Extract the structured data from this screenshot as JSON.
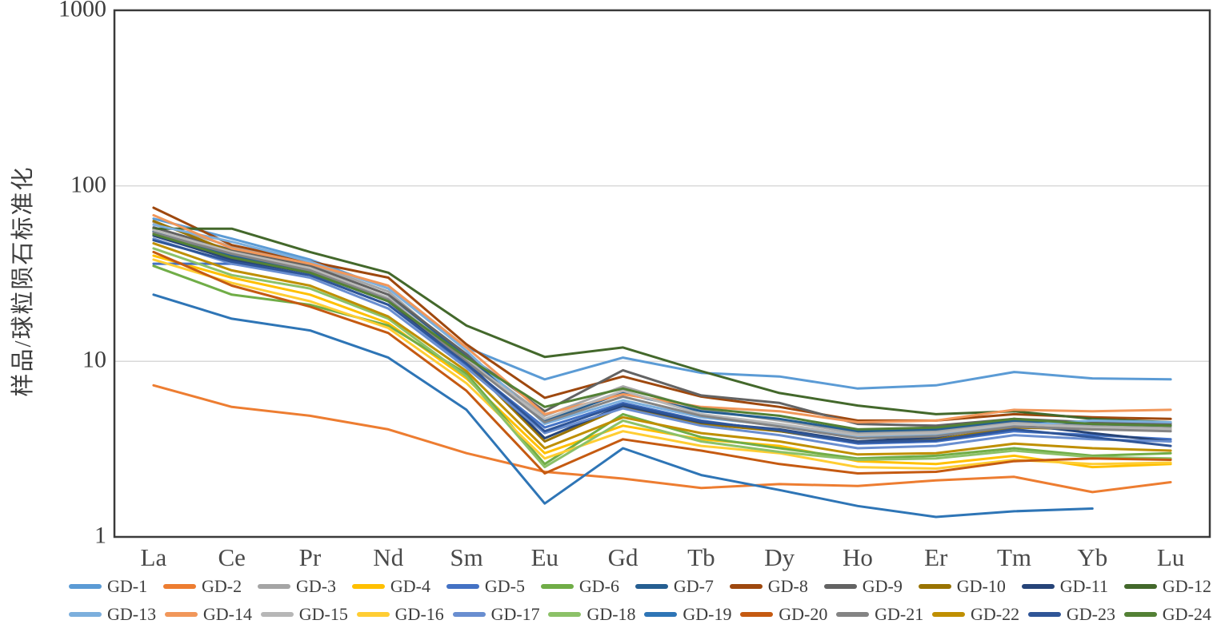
{
  "chart_data": {
    "type": "line",
    "title": "",
    "y_axis": {
      "title": "样品/球粒陨石标准化",
      "scale": "log",
      "range": [
        1,
        1000
      ],
      "ticks": [
        {
          "label": "1",
          "value": 1
        },
        {
          "label": "10",
          "value": 10
        },
        {
          "label": "100",
          "value": 100
        },
        {
          "label": "1000",
          "value": 1000
        }
      ],
      "gridlines": [
        10,
        100
      ]
    },
    "categories": [
      "La",
      "Ce",
      "Pr",
      "Nd",
      "Sm",
      "Eu",
      "Gd",
      "Tb",
      "Dy",
      "Ho",
      "Er",
      "Tm",
      "Yb",
      "Lu"
    ],
    "legend": {
      "position": "bottom",
      "rows": 2,
      "items_per_row": 12
    },
    "style": {
      "axis_color": "#3a3a3a",
      "grid_color": "#d9d9d9",
      "text_color": "#3d3d3d",
      "line_width": 3
    },
    "series": [
      {
        "name": "GD-1",
        "color": "#5B9BD5",
        "values": [
          65,
          50,
          38,
          26,
          12,
          7.9,
          10.5,
          8.6,
          8.2,
          7.0,
          7.3,
          8.7,
          8.0,
          7.9
        ]
      },
      {
        "name": "GD-2",
        "color": "#ED7D31",
        "values": [
          7.3,
          5.5,
          4.9,
          4.1,
          3.0,
          2.35,
          2.15,
          1.9,
          2.0,
          1.95,
          2.1,
          2.2,
          1.8,
          2.05
        ]
      },
      {
        "name": "GD-3",
        "color": "#A5A5A5",
        "values": [
          62,
          45,
          36,
          25,
          10.5,
          4.9,
          7.2,
          5.3,
          4.6,
          3.9,
          4.0,
          4.5,
          4.3,
          4.2
        ]
      },
      {
        "name": "GD-4",
        "color": "#FFC000",
        "values": [
          40,
          30,
          24,
          16.5,
          8.0,
          3.0,
          4.3,
          3.6,
          3.3,
          2.7,
          2.6,
          2.9,
          2.5,
          2.6
        ]
      },
      {
        "name": "GD-5",
        "color": "#4472C4",
        "values": [
          36,
          36,
          31,
          21,
          9.5,
          4.2,
          5.8,
          4.6,
          4.0,
          3.4,
          3.5,
          4.0,
          3.8,
          3.6
        ]
      },
      {
        "name": "GD-6",
        "color": "#70AD47",
        "values": [
          35,
          24,
          21,
          16,
          8.5,
          2.6,
          5.0,
          3.7,
          3.2,
          2.8,
          2.9,
          3.2,
          2.9,
          3.0
        ]
      },
      {
        "name": "GD-7",
        "color": "#255E91",
        "values": [
          55,
          40,
          33,
          23,
          10.8,
          4.6,
          6.6,
          5.2,
          4.7,
          4.0,
          4.1,
          4.6,
          4.4,
          4.3
        ]
      },
      {
        "name": "GD-8",
        "color": "#9E480E",
        "values": [
          75,
          46,
          37,
          30,
          12.5,
          6.2,
          8.2,
          6.3,
          5.5,
          4.6,
          4.6,
          5.0,
          4.8,
          4.7
        ]
      },
      {
        "name": "GD-9",
        "color": "#636363",
        "values": [
          58,
          43,
          35,
          24,
          11.0,
          5.2,
          8.9,
          6.4,
          5.8,
          4.4,
          4.3,
          4.7,
          4.5,
          4.4
        ]
      },
      {
        "name": "GD-10",
        "color": "#997300",
        "values": [
          63,
          42,
          34,
          22,
          9.8,
          3.5,
          5.5,
          4.4,
          4.0,
          3.5,
          3.6,
          4.2,
          4.1,
          4.1
        ]
      },
      {
        "name": "GD-11",
        "color": "#264478",
        "values": [
          52,
          38,
          32,
          22,
          10.0,
          3.65,
          5.6,
          4.5,
          4.1,
          3.5,
          3.7,
          4.4,
          3.9,
          3.5
        ]
      },
      {
        "name": "GD-12",
        "color": "#43682B",
        "values": [
          57,
          57,
          42,
          32,
          16,
          10.6,
          12.0,
          8.8,
          6.6,
          5.6,
          5.0,
          5.2,
          4.7,
          4.5
        ]
      },
      {
        "name": "GD-13",
        "color": "#7CAFDD",
        "values": [
          60,
          48,
          37,
          26,
          11.5,
          4.4,
          6.0,
          4.8,
          4.3,
          3.7,
          3.8,
          4.3,
          4.6,
          4.5
        ]
      },
      {
        "name": "GD-14",
        "color": "#F1975A",
        "values": [
          68,
          44,
          36,
          27,
          12.0,
          5.0,
          6.5,
          5.5,
          5.2,
          4.5,
          4.6,
          5.3,
          5.2,
          5.3
        ]
      },
      {
        "name": "GD-15",
        "color": "#B7B7B7",
        "values": [
          56,
          42,
          34,
          23,
          10.2,
          4.7,
          6.8,
          5.0,
          4.4,
          3.8,
          3.9,
          4.4,
          4.2,
          4.1
        ]
      },
      {
        "name": "GD-16",
        "color": "#FFCD33",
        "values": [
          38,
          28,
          22,
          15.5,
          7.5,
          2.8,
          4.0,
          3.3,
          3.0,
          2.5,
          2.45,
          2.75,
          2.6,
          2.65
        ]
      },
      {
        "name": "GD-17",
        "color": "#698ED0",
        "values": [
          50,
          36,
          30,
          20,
          9.2,
          3.9,
          5.4,
          4.3,
          3.8,
          3.2,
          3.3,
          3.8,
          3.6,
          3.5
        ]
      },
      {
        "name": "GD-18",
        "color": "#8CC168",
        "values": [
          44,
          31,
          26,
          17.5,
          8.2,
          2.5,
          4.6,
          3.5,
          3.05,
          2.75,
          2.8,
          3.1,
          2.85,
          2.8
        ]
      },
      {
        "name": "GD-19",
        "color": "#2E75B6",
        "values": [
          24,
          17.5,
          15,
          10.5,
          5.3,
          1.55,
          3.2,
          2.25,
          1.85,
          1.5,
          1.3,
          1.4,
          1.45,
          null
        ]
      },
      {
        "name": "GD-20",
        "color": "#C55A11",
        "values": [
          42,
          27,
          20.5,
          14.5,
          6.8,
          2.3,
          3.6,
          3.1,
          2.6,
          2.3,
          2.35,
          2.7,
          2.8,
          2.75
        ]
      },
      {
        "name": "GD-21",
        "color": "#848484",
        "values": [
          54,
          41,
          33,
          22.5,
          10.0,
          4.5,
          6.3,
          4.9,
          4.25,
          3.65,
          3.75,
          4.25,
          4.1,
          4.0
        ]
      },
      {
        "name": "GD-22",
        "color": "#BF8F00",
        "values": [
          47,
          33,
          27,
          18,
          8.8,
          3.2,
          4.8,
          3.9,
          3.5,
          2.95,
          3.0,
          3.4,
          3.2,
          3.1
        ]
      },
      {
        "name": "GD-23",
        "color": "#2F5597",
        "values": [
          49,
          37,
          31,
          21,
          9.7,
          4.0,
          5.7,
          4.55,
          4.05,
          3.45,
          3.55,
          4.1,
          3.7,
          3.3
        ]
      },
      {
        "name": "GD-24",
        "color": "#538135",
        "values": [
          53,
          39,
          32,
          22,
          10.5,
          5.5,
          7.0,
          5.4,
          4.9,
          4.1,
          4.2,
          4.7,
          4.4,
          4.3
        ]
      }
    ]
  }
}
